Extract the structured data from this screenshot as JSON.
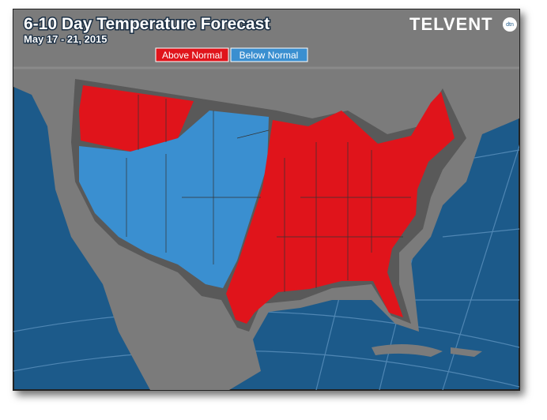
{
  "header": {
    "title": "6-10 Day Temperature Forecast",
    "subtitle": "May 17 - 21, 2015"
  },
  "legend": [
    {
      "label": "Above Normal",
      "color": "#e0141b"
    },
    {
      "label": "Below Normal",
      "color": "#3a8fd0"
    }
  ],
  "logo": {
    "name": "TELVENT",
    "badge": "dtn"
  }
}
